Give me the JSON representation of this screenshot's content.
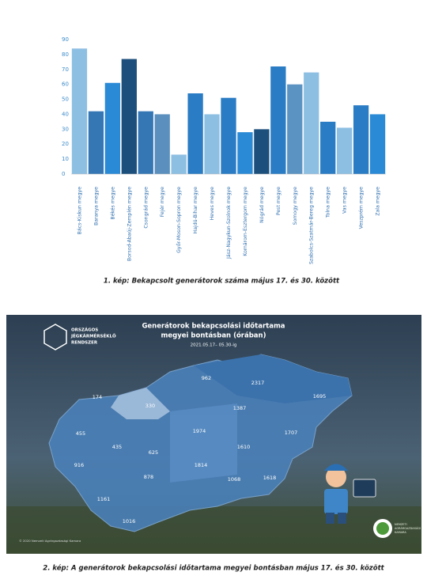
{
  "chart_data": {
    "type": "bar",
    "categories": [
      "Bács-Kiskun megye",
      "Baranya megye",
      "Békés megye",
      "Borsod-Abaúj-Zemplén megye",
      "Csongrád megye",
      "Fejér megye",
      "Győr-Moson-Sopron megye",
      "Hajdú-Bihar megye",
      "Heves megye",
      "Jász-Nagykun-Szolnok megye",
      "Komárom-Esztergom megye",
      "Nógrád megye",
      "Pest megye",
      "Somogy megye",
      "Szabolcs-Szatmár-Bereg megye",
      "Tolna megye",
      "Vas megye",
      "Veszprém megye",
      "Zala megye"
    ],
    "values": [
      84,
      42,
      61,
      77,
      42,
      40,
      13,
      54,
      40,
      51,
      28,
      30,
      72,
      60,
      68,
      35,
      31,
      46,
      40
    ],
    "colors": [
      "#8dbfe3",
      "#3577b5",
      "#2a8ad6",
      "#1c4f7c",
      "#3577b5",
      "#5b8fbe",
      "#8dbfe3",
      "#2a7cc4",
      "#8dbfe3",
      "#2a7cc4",
      "#2a8ad6",
      "#1c4f7c",
      "#2a7cc4",
      "#5b93c3",
      "#8dbfe3",
      "#2a7cc4",
      "#8dbfe3",
      "#2a7cc4",
      "#2a8ad6"
    ],
    "ylim": [
      0,
      90
    ],
    "yticks": [
      0,
      10,
      20,
      30,
      40,
      50,
      60,
      70,
      80,
      90
    ],
    "grid": false
  },
  "caption_1": "1. kép: Bekapcsolt generátorok száma május 17. és 30. között",
  "map": {
    "logo": [
      "ORSZÁGOS",
      "JÉGKÁRMÉRSÉKLŐ",
      "RENDSZER"
    ],
    "title_lines": [
      "Generátorok bekapcsolási időtartama",
      "megyei bontásban (órában)"
    ],
    "date": "2021.05.17– 05.30-ig",
    "values": [
      "174",
      "330",
      "455",
      "435",
      "625",
      "916",
      "878",
      "1161",
      "1016",
      "1974",
      "1814",
      "1068",
      "1618",
      "962",
      "2317",
      "1387",
      "1610",
      "1707",
      "1695"
    ],
    "copyright": "© 2020 Nemzeti Agrárgazdasági Kamara",
    "nak": [
      "NEMZETI",
      "AGRÁRGAZDASÁGI",
      "KAMARA"
    ]
  },
  "caption_2": "2. kép: A generátorok bekapcsolási időtartama megyei bontásban május 17. és 30. között"
}
